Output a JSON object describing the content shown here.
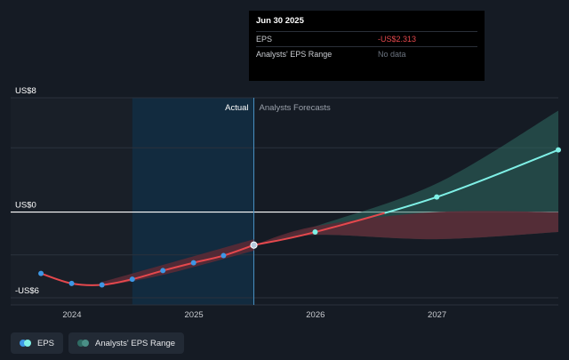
{
  "tooltip": {
    "date": "Jun 30 2025",
    "rows": [
      {
        "label": "EPS",
        "value": "-US$2.313"
      },
      {
        "label": "Analysts' EPS Range",
        "value": "No data"
      }
    ]
  },
  "colors": {
    "background": "#151b24",
    "actual_line": "#e5484d",
    "forecast_line": "#7ff0e6",
    "forecast_band": "#2f6b63",
    "past_band": "#5a2a35",
    "actual_point": "#3d97e5",
    "highlight_region": "#123148"
  },
  "legend": [
    {
      "label": "EPS",
      "icon": "eps-legend-icon"
    },
    {
      "label": "Analysts' EPS Range",
      "icon": "range-legend-icon"
    }
  ],
  "chart_data": {
    "type": "line",
    "y_tick_labels": [
      {
        "value": 8,
        "label": "US$8"
      },
      {
        "value": 0,
        "label": "US$0"
      },
      {
        "value": -6,
        "label": "-US$6"
      }
    ],
    "ylim": [
      -6.5,
      8
    ],
    "xlim": [
      "2023-07-01",
      "2027-12-31"
    ],
    "x_ticks": [
      {
        "date": "2024-01-01",
        "label": "2024"
      },
      {
        "date": "2025-01-01",
        "label": "2025"
      },
      {
        "date": "2026-01-01",
        "label": "2026"
      },
      {
        "date": "2027-01-01",
        "label": "2027"
      }
    ],
    "region_labels": {
      "actual": "Actual",
      "forecast": "Analysts Forecasts"
    },
    "divider_date": "2025-06-30",
    "highlight_start_date": "2024-06-30",
    "series": [
      {
        "name": "EPS",
        "kind": "actual",
        "points": [
          {
            "x": "2023-09-30",
            "y": -4.3
          },
          {
            "x": "2023-12-31",
            "y": -5.0
          },
          {
            "x": "2024-03-31",
            "y": -5.1
          },
          {
            "x": "2024-06-30",
            "y": -4.7
          },
          {
            "x": "2024-09-30",
            "y": -4.1
          },
          {
            "x": "2024-12-31",
            "y": -3.55
          },
          {
            "x": "2025-03-31",
            "y": -3.05
          },
          {
            "x": "2025-06-30",
            "y": -2.313
          }
        ]
      },
      {
        "name": "EPS",
        "kind": "forecast",
        "points": [
          {
            "x": "2025-06-30",
            "y": -2.313
          },
          {
            "x": "2025-12-31",
            "y": -1.4
          },
          {
            "x": "2026-12-31",
            "y": 1.05
          },
          {
            "x": "2027-12-31",
            "y": 4.35
          }
        ],
        "range_low": [
          -2.313,
          -1.6,
          -1.9,
          -1.4
        ],
        "range_high": [
          -2.313,
          -1.0,
          2.0,
          7.1
        ]
      }
    ],
    "past_range": {
      "x": [
        "2024-03-31",
        "2024-09-30",
        "2025-06-30"
      ],
      "low": [
        -5.2,
        -4.4,
        -2.7
      ],
      "high": [
        -4.9,
        -3.7,
        -1.9
      ]
    }
  }
}
